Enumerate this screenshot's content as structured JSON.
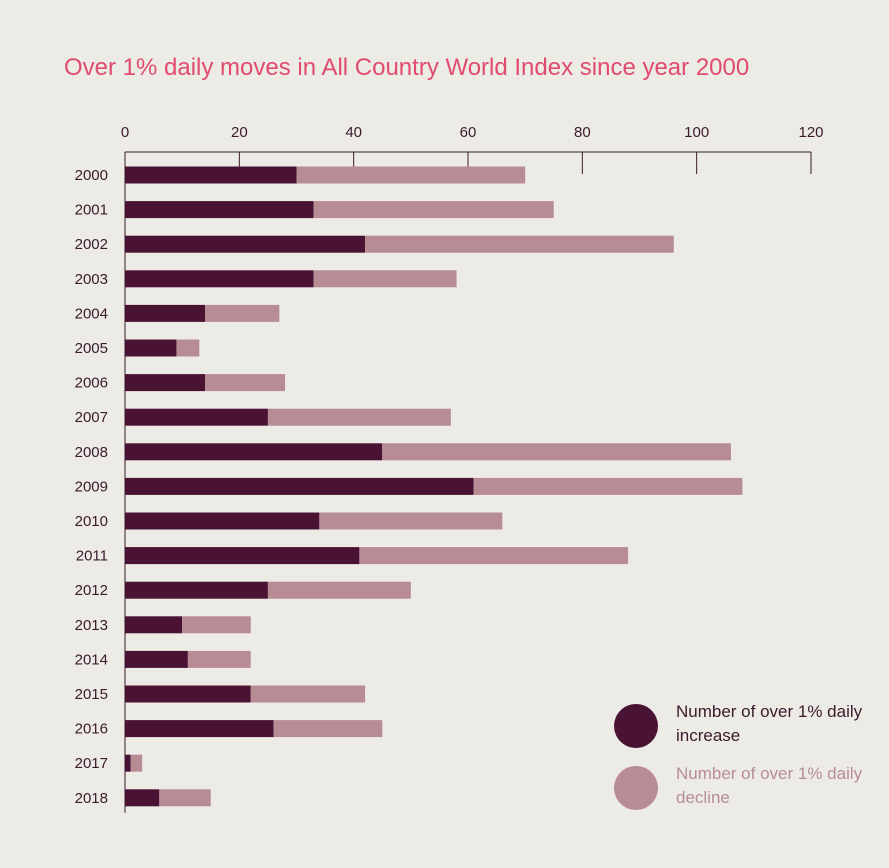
{
  "chart_data": {
    "type": "bar",
    "orientation": "horizontal",
    "stacked": true,
    "title": "Over 1% daily moves in All Country World Index since year 2000",
    "categories": [
      "2000",
      "2001",
      "2002",
      "2003",
      "2004",
      "2005",
      "2006",
      "2007",
      "2008",
      "2009",
      "2010",
      "2011",
      "2012",
      "2013",
      "2014",
      "2015",
      "2016",
      "2017",
      "2018"
    ],
    "series": [
      {
        "name": "Number of over 1% daily increase",
        "color": "#4a1334",
        "values": [
          30,
          33,
          42,
          33,
          14,
          9,
          14,
          25,
          45,
          61,
          34,
          41,
          25,
          10,
          11,
          22,
          26,
          1,
          6
        ]
      },
      {
        "name": "Number of over 1% daily decline",
        "color": "#b88c95",
        "values": [
          40,
          42,
          54,
          25,
          13,
          4,
          14,
          32,
          61,
          47,
          32,
          47,
          25,
          12,
          11,
          20,
          19,
          2,
          9
        ]
      }
    ],
    "xlim": [
      0,
      120
    ],
    "xticks": [
      "0",
      "20",
      "40",
      "60",
      "80",
      "100",
      "120"
    ],
    "xaxis_position": "top",
    "grid": false,
    "legend_position": "bottom-right"
  }
}
